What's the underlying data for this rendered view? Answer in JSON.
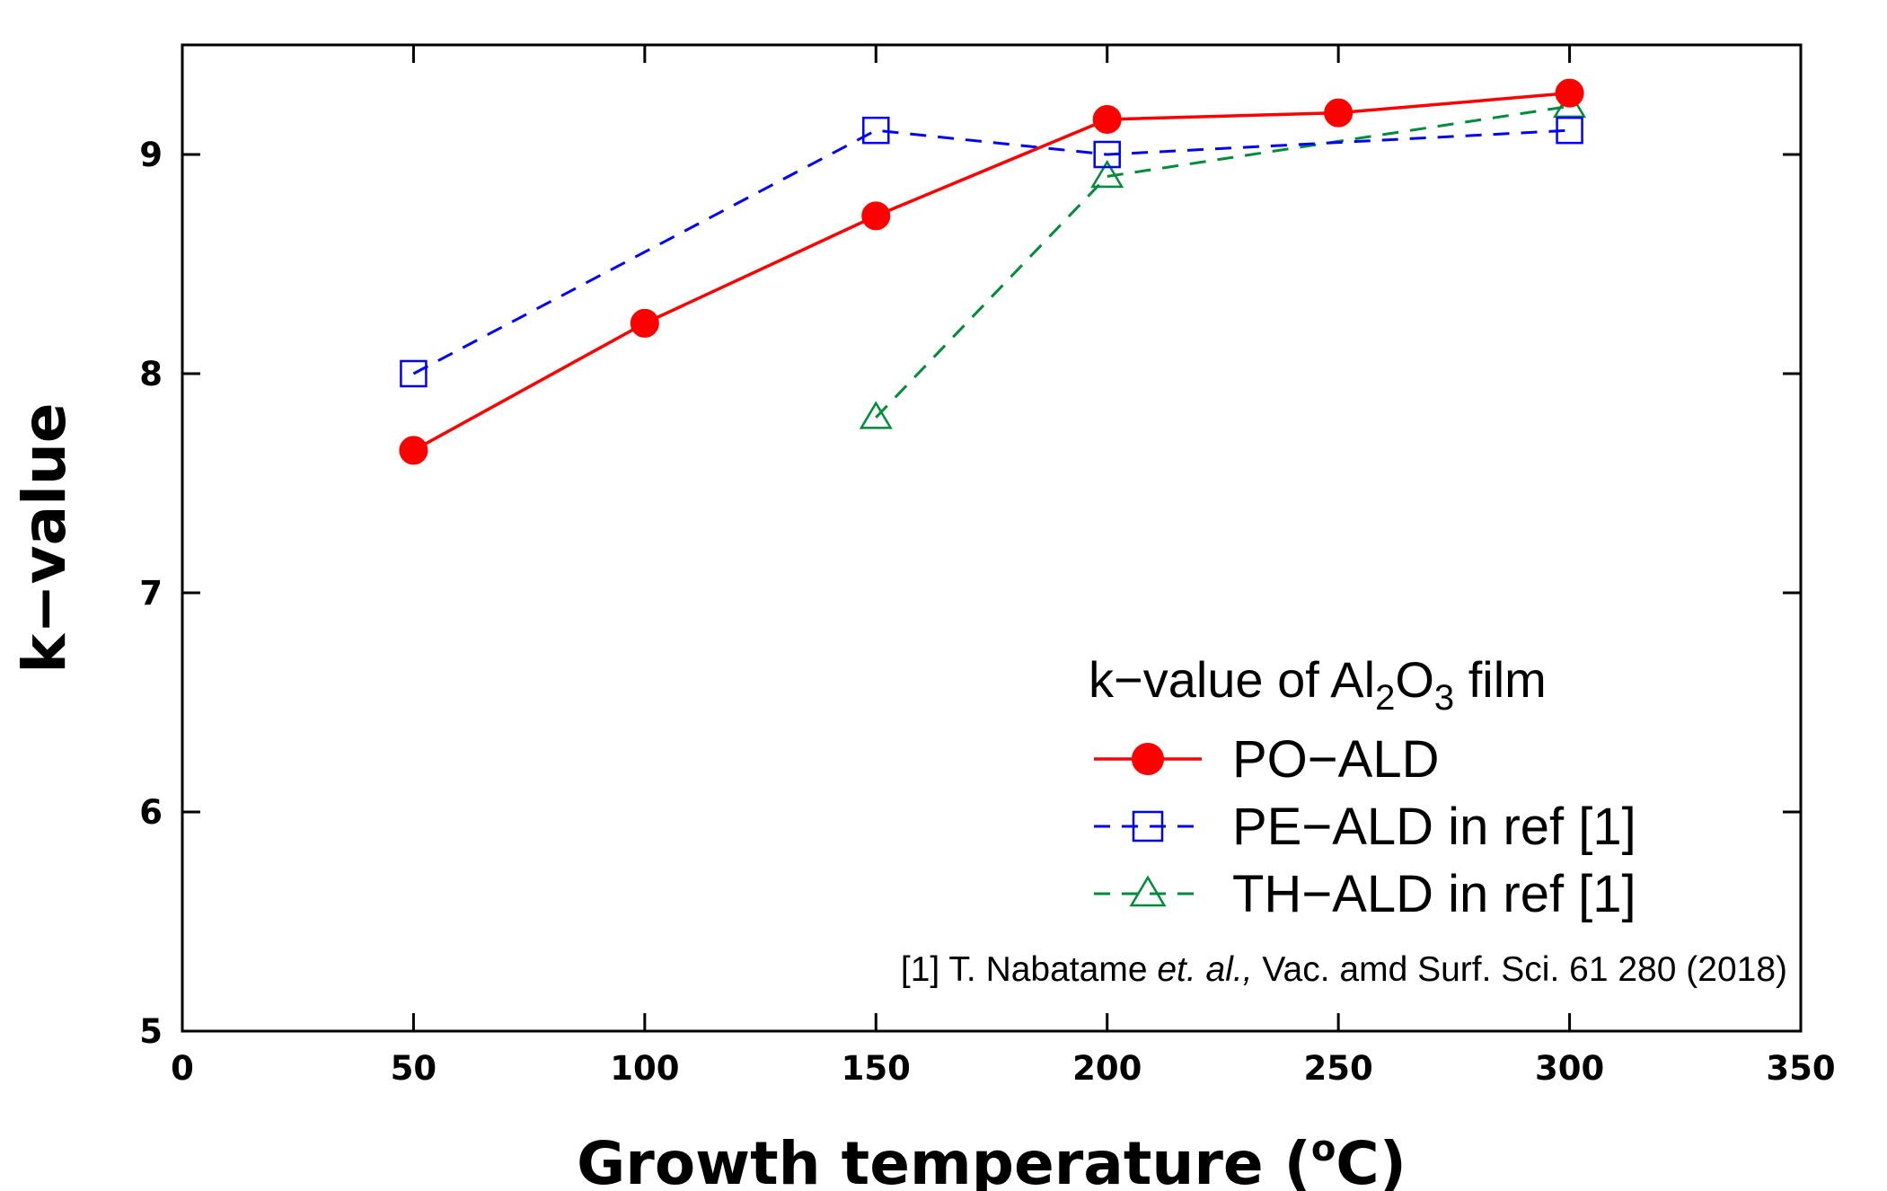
{
  "chart_data": {
    "type": "line",
    "xlabel": "Growth temperature (",
    "xlabel_sup": "o",
    "xlabel_end": "C)",
    "ylabel": "k−value",
    "xlim": [
      0,
      350
    ],
    "ylim": [
      5,
      9.5
    ],
    "xticks": [
      0,
      50,
      100,
      150,
      200,
      250,
      300,
      350
    ],
    "yticks": [
      5,
      6,
      7,
      8,
      9
    ],
    "grid": false,
    "legend_position": "bottom-right",
    "legend_title": {
      "prefix": "k−value of Al",
      "sub1": "2",
      "mid": "O",
      "sub2": "3",
      "suffix": " film"
    },
    "series": [
      {
        "name": "PO−ALD",
        "color": "#ff0000",
        "marker": "filled-circle",
        "line": "solid",
        "x": [
          50,
          100,
          150,
          200,
          250,
          300
        ],
        "y": [
          7.65,
          8.23,
          8.72,
          9.16,
          9.19,
          9.28
        ]
      },
      {
        "name": "PE−ALD in ref [1]",
        "color": "#0000ff",
        "marker": "open-square",
        "line": "dashed",
        "x": [
          50,
          150,
          200,
          300
        ],
        "y": [
          8.0,
          9.11,
          9.0,
          9.11
        ]
      },
      {
        "name": "TH−ALD in ref [1]",
        "color": "#008c3a",
        "marker": "open-triangle",
        "line": "dashed",
        "x": [
          150,
          200,
          300
        ],
        "y": [
          7.8,
          8.9,
          9.22
        ]
      }
    ],
    "annotation": {
      "prefix": "[1] T. Nabatame ",
      "italic": "et. al.,",
      "suffix": " Vac. amd Surf. Sci. 61 280 (2018)"
    }
  }
}
